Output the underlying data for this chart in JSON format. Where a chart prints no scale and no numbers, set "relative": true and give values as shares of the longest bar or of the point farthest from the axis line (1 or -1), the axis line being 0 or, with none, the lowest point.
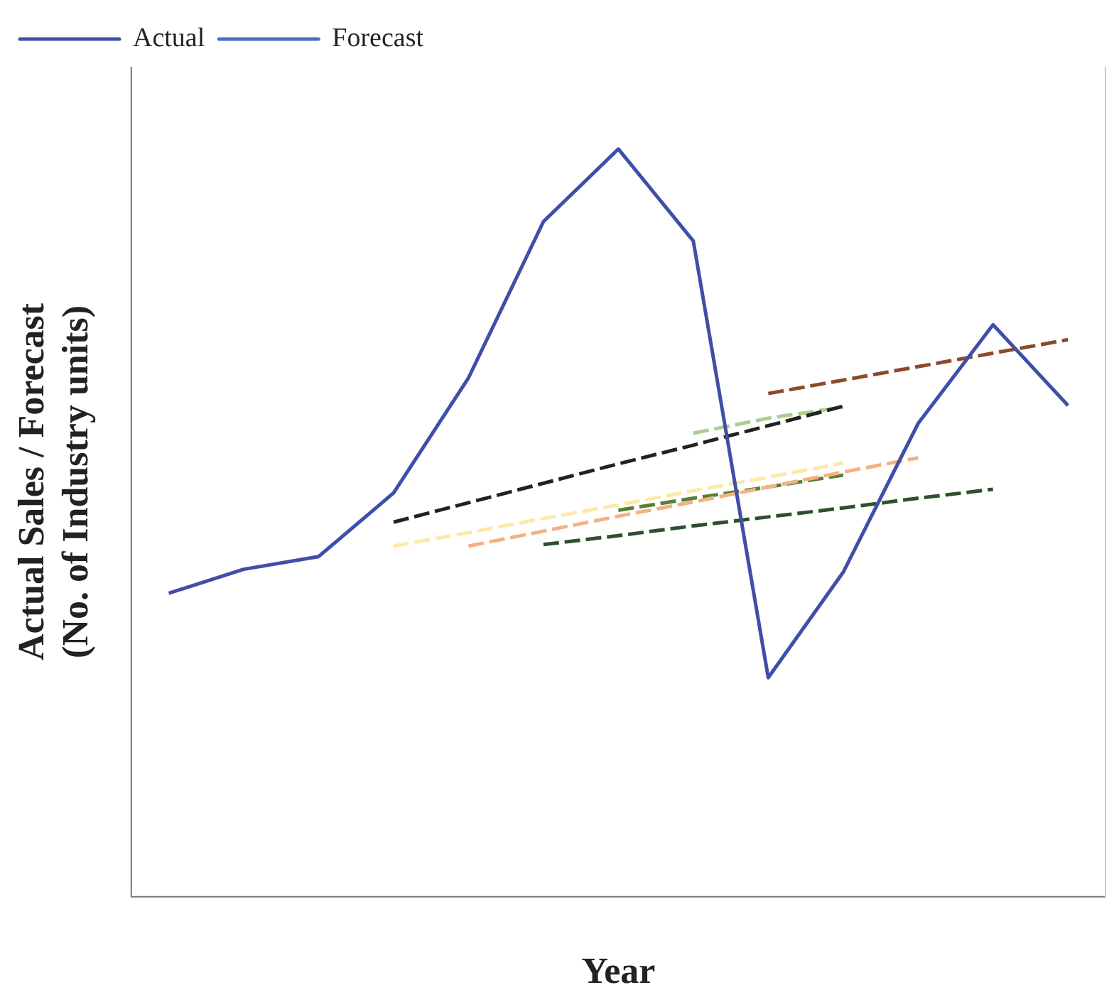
{
  "chart_data": {
    "type": "line",
    "relative": true,
    "xlabel": "Year",
    "ylabel": "Actual Sales / Forecast\n(No. of Industry units)",
    "legend": "top left",
    "grid": false,
    "marker": "none",
    "categories": [
      null,
      null,
      null,
      null,
      null,
      null,
      null,
      null,
      null,
      null,
      null,
      null,
      null
    ],
    "series": [
      {
        "name": "Actual",
        "color": "#3f4fa8",
        "line_style": "solid",
        "values": [
          0.406,
          0.438,
          0.455,
          0.54,
          0.694,
          0.903,
          1,
          0.877,
          0.293,
          0.434,
          0.633,
          0.765,
          0.657
        ]
      },
      {
        "name": "Forecast",
        "color": "#4a6cc8",
        "line_style": "dashed",
        "values": [
          null,
          null,
          null,
          null,
          null,
          null,
          null,
          null,
          null,
          null,
          null,
          null,
          null
        ]
      },
      {
        "color": "#fde9a9",
        "line_style": "dashed",
        "values": [
          null,
          null,
          null,
          0.469,
          0.487,
          0.506,
          0.524,
          0.543,
          0.561,
          0.58,
          null,
          null,
          null
        ]
      },
      {
        "color": "#222222",
        "line_style": "dashed",
        "values": [
          null,
          null,
          null,
          0.501,
          0.527,
          0.553,
          0.579,
          0.604,
          0.63,
          0.656,
          null,
          null,
          null
        ]
      },
      {
        "color": "#f4b183",
        "line_style": "dashed",
        "values": [
          null,
          null,
          null,
          null,
          0.469,
          0.489,
          0.509,
          0.528,
          0.548,
          0.568,
          0.587,
          null,
          null
        ]
      },
      {
        "color": "#2f4f2f",
        "line_style": "dashed",
        "values": [
          null,
          null,
          null,
          null,
          null,
          0.471,
          0.483,
          0.496,
          0.508,
          0.52,
          0.533,
          0.545,
          null
        ]
      },
      {
        "color": "#548235",
        "line_style": "dashed",
        "values": [
          null,
          null,
          null,
          null,
          null,
          null,
          0.517,
          0.533,
          0.548,
          0.564,
          null,
          null,
          null
        ]
      },
      {
        "color": "#a8d08d",
        "line_style": "dashed",
        "values": [
          null,
          null,
          null,
          null,
          null,
          null,
          null,
          0.62,
          0.64,
          0.655,
          null,
          null,
          null
        ]
      },
      {
        "color": "#8b4a2b",
        "line_style": "dashed",
        "values": [
          null,
          null,
          null,
          null,
          null,
          null,
          null,
          null,
          0.673,
          0.691,
          0.709,
          0.727,
          0.745
        ]
      }
    ]
  }
}
